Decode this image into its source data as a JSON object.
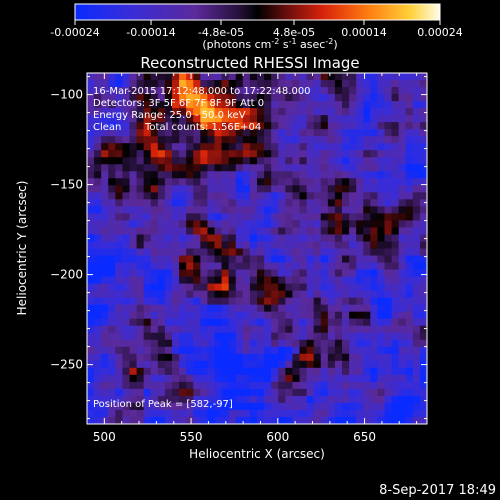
{
  "colorbar": {
    "ticks": [
      {
        "value": -0.00024,
        "label": "-0.00024"
      },
      {
        "value": -0.00014,
        "label": "-0.00014"
      },
      {
        "value": -4.8e-05,
        "label": "-4.8e-05"
      },
      {
        "value": 4.8e-05,
        "label": "4.8e-05"
      },
      {
        "value": 0.00014,
        "label": "0.00014"
      },
      {
        "value": 0.00024,
        "label": "0.00024"
      }
    ],
    "range": [
      -0.00024,
      0.00024
    ],
    "units_label": "(photons cm",
    "units_sup1": "-2",
    "units_mid": " s",
    "units_sup2": "-1",
    "units_mid2": " asec",
    "units_sup3": "-2",
    "units_end": ")"
  },
  "chart_data": {
    "type": "heatmap",
    "title": "Reconstructed RHESSI Image",
    "xlabel": "Heliocentric X (arcsec)",
    "ylabel": "Heliocentric Y (arcsec)",
    "xlim": [
      490,
      686
    ],
    "ylim": [
      -283,
      -88
    ],
    "xticks": [
      500,
      550,
      600,
      650
    ],
    "yticks": [
      -100,
      -150,
      -200,
      -250
    ],
    "colorbar_range": [
      -0.00024,
      0.00024
    ],
    "colormap": "blue-purple-black-red-orange-yellow-white",
    "peak_position": [
      582,
      -97
    ],
    "annotations": {
      "time_range": "16-Mar-2015 17:12:48.000 to 17:22:48.000",
      "detectors": "Detectors: 3F 5F 6F 7F 8F 9F  Att 0",
      "energy_range": "Energy Range: 25.0 - 50.0 keV",
      "method": "Clean",
      "total_counts": "Total counts: 1.56E+04",
      "peak_label": "Position of Peak = [582,-97]"
    }
  },
  "footer": {
    "timestamp": "8-Sep-2017 18:49"
  }
}
